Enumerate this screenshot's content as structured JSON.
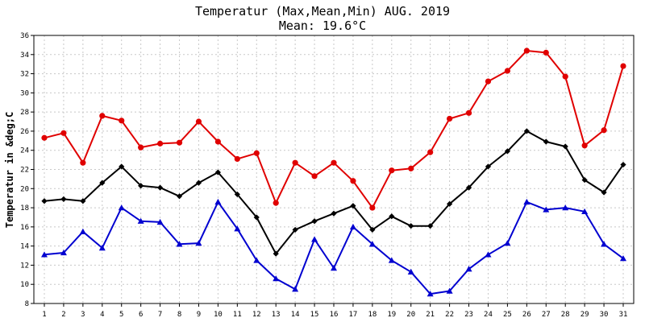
{
  "chart_data": {
    "type": "line",
    "title": "Temperatur (Max,Mean,Min) AUG. 2019",
    "subtitle": "Mean: 19.6°C",
    "ylabel": "Temperatur in &deg;C",
    "xlabel": "",
    "ylim": [
      8,
      36
    ],
    "ytick_step": 2,
    "grid": true,
    "x": [
      1,
      2,
      3,
      4,
      5,
      6,
      7,
      8,
      9,
      10,
      11,
      12,
      13,
      14,
      15,
      16,
      17,
      18,
      19,
      20,
      21,
      22,
      23,
      24,
      25,
      26,
      27,
      28,
      29,
      30,
      31
    ],
    "series": [
      {
        "key": "max",
        "color": "#e00000",
        "marker": "circle",
        "values": [
          25.3,
          25.8,
          22.7,
          27.6,
          27.1,
          24.3,
          24.7,
          24.8,
          27.0,
          24.9,
          23.1,
          23.7,
          18.5,
          22.7,
          21.3,
          22.7,
          20.8,
          18.0,
          21.9,
          22.1,
          23.8,
          27.3,
          27.9,
          31.2,
          32.3,
          34.4,
          34.2,
          31.7,
          24.5,
          26.1,
          32.8
        ]
      },
      {
        "key": "mean",
        "color": "#000000",
        "marker": "diamond",
        "values": [
          18.7,
          18.9,
          18.7,
          20.6,
          22.3,
          20.3,
          20.1,
          19.2,
          20.6,
          21.7,
          19.4,
          17.0,
          13.2,
          15.7,
          16.6,
          17.4,
          18.2,
          15.7,
          17.1,
          16.1,
          16.1,
          18.4,
          20.1,
          22.3,
          23.9,
          26.0,
          24.9,
          24.4,
          20.9,
          19.6,
          22.5
        ]
      },
      {
        "key": "min",
        "color": "#0000d0",
        "marker": "triangle",
        "values": [
          13.1,
          13.3,
          15.5,
          13.8,
          18.0,
          16.6,
          16.5,
          14.2,
          14.3,
          18.6,
          15.8,
          12.5,
          10.6,
          9.5,
          14.7,
          11.7,
          16.0,
          14.2,
          12.5,
          11.3,
          9.0,
          9.3,
          11.6,
          13.1,
          14.3,
          18.6,
          17.8,
          18.0,
          17.6,
          14.2,
          12.7
        ]
      }
    ]
  }
}
